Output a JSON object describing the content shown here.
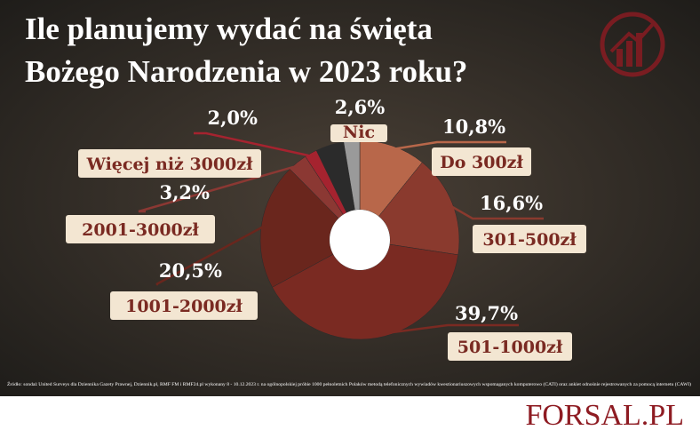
{
  "chart_data": {
    "type": "donut",
    "title": [
      "Ile planujemy wydać na święta",
      "Bożego Narodzenia w 2023 roku?"
    ],
    "categories": [
      "Do 300zł",
      "301-500zł",
      "501-1000zł",
      "1001-2000zł",
      "2001-3000zł",
      "Więcej niż 3000zł",
      "Nic"
    ],
    "values": [
      10.8,
      16.6,
      39.7,
      20.5,
      3.2,
      2.0,
      2.6
    ],
    "value_labels": [
      "10,8%",
      "16,6%",
      "39,7%",
      "20,5%",
      "3,2%",
      "2,0%",
      "2,6%"
    ],
    "colors": [
      "#b8674a",
      "#8a3a2e",
      "#7a2a22",
      "#6a261d",
      "#8b3833",
      "#a5232f",
      "#9a9a9a"
    ],
    "source": "Źródło: sondaż United Surveys dla Dziennika Gazety Prawnej, Dziennik.pl, RMF FM i RMF24.pl wykonany 8 - 10.12.2023 r. na ogólnopolskiej próbie 1000 pełnoletnich Polaków metodą telefonicznych wywiadów kwestionariuszowych wspomaganych komputerowo (CATI) oraz ankiet odnośnie rejestrowanych za pomocą internetu (CAWI)",
    "brand": "FORSAL.PL"
  }
}
